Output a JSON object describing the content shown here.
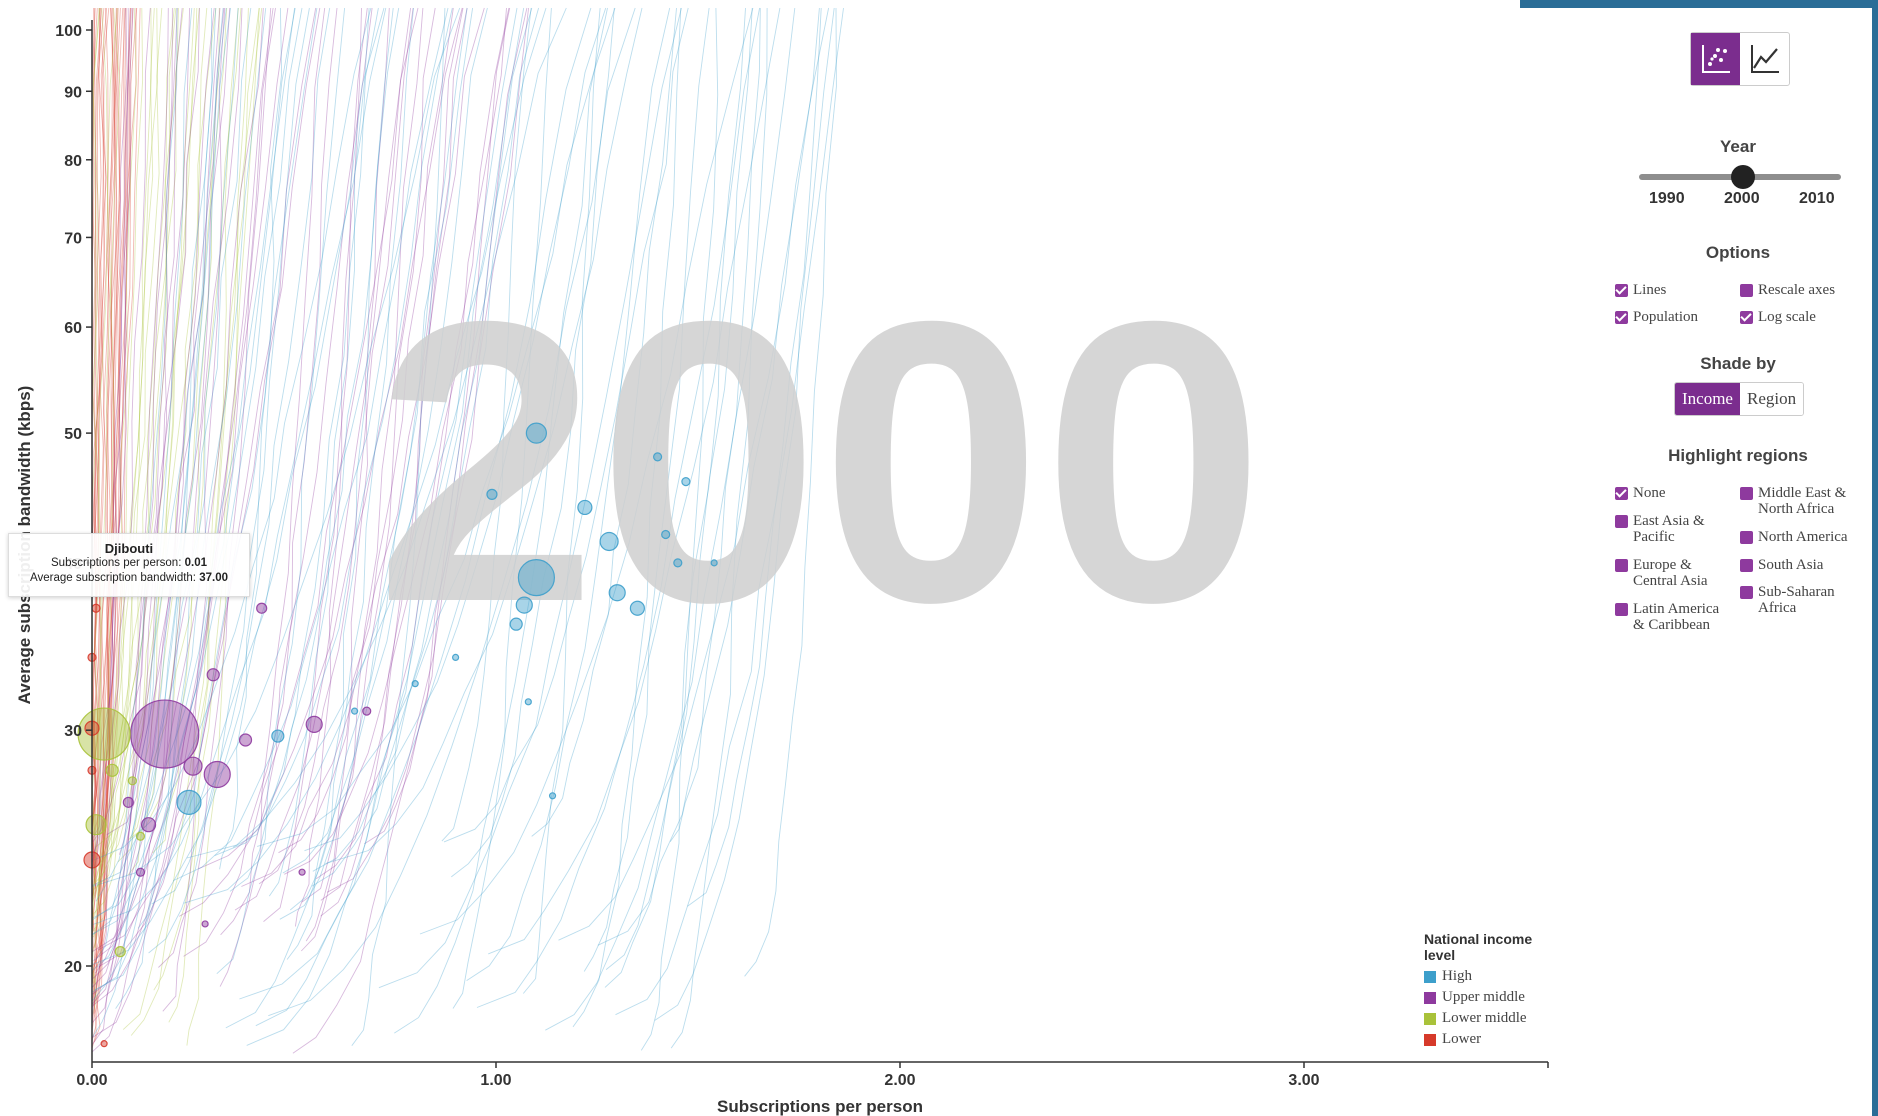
{
  "chart_data": {
    "type": "scatter",
    "year_watermark": "2000",
    "xlabel": "Subscriptions per person",
    "ylabel": "Average subscription bandwidth (kbps)",
    "xlim": [
      0,
      3.6
    ],
    "ylim": [
      17,
      100
    ],
    "y_scale": "log",
    "x_ticks": [
      "0.00",
      "1.00",
      "2.00",
      "3.00"
    ],
    "x_tick_values": [
      0,
      1,
      2,
      3
    ],
    "y_ticks": [
      "20",
      "30",
      "40",
      "50",
      "60",
      "70",
      "80",
      "90",
      "100"
    ],
    "y_tick_values": [
      20,
      30,
      40,
      50,
      60,
      70,
      80,
      90,
      100
    ],
    "grid": false,
    "legend_placement": "bottom-right",
    "income_colors": {
      "High": "#3d9fcb",
      "Upper middle": "#8e3a9e",
      "Lower middle": "#a9c23a",
      "Lower": "#d63a2b"
    },
    "series": [
      {
        "name": "High",
        "color": "#3d9fcb",
        "points": [
          [
            1.1,
            50,
            10
          ],
          [
            1.1,
            39,
            18
          ],
          [
            1.28,
            41.5,
            9
          ],
          [
            1.22,
            44,
            7
          ],
          [
            1.3,
            38,
            8
          ],
          [
            1.35,
            37,
            7
          ],
          [
            1.07,
            37.2,
            8
          ],
          [
            1.05,
            36,
            6
          ],
          [
            0.24,
            26.5,
            12
          ],
          [
            0.46,
            29.7,
            6
          ],
          [
            0.99,
            45,
            5
          ],
          [
            1.4,
            48,
            4
          ],
          [
            1.47,
            46,
            4
          ],
          [
            1.42,
            42,
            4
          ],
          [
            1.45,
            40,
            4
          ],
          [
            1.54,
            40,
            3
          ],
          [
            0.65,
            31,
            3
          ],
          [
            1.08,
            31.5,
            3
          ],
          [
            1.14,
            26.8,
            3
          ],
          [
            0.8,
            32.5,
            3
          ],
          [
            0.9,
            34,
            3
          ]
        ]
      },
      {
        "name": "Upper middle",
        "color": "#8e3a9e",
        "points": [
          [
            0.18,
            29.8,
            34
          ],
          [
            0.31,
            27.8,
            13
          ],
          [
            0.25,
            28.2,
            9
          ],
          [
            0.55,
            30.3,
            8
          ],
          [
            0.3,
            33,
            6
          ],
          [
            0.14,
            25.5,
            7
          ],
          [
            0.09,
            26.5,
            5
          ],
          [
            0.38,
            29.5,
            6
          ],
          [
            0.42,
            37,
            5
          ],
          [
            0.68,
            31,
            4
          ],
          [
            0.12,
            23.5,
            4
          ],
          [
            0.28,
            21.5,
            3
          ],
          [
            0.52,
            23.5,
            3
          ]
        ]
      },
      {
        "name": "Lower middle",
        "color": "#a9c23a",
        "points": [
          [
            0.03,
            29.8,
            26
          ],
          [
            0.01,
            25.5,
            10
          ],
          [
            0.07,
            20.5,
            5
          ],
          [
            0.05,
            28,
            6
          ],
          [
            0.1,
            27.5,
            4
          ],
          [
            0.12,
            25,
            4
          ]
        ]
      },
      {
        "name": "Lower",
        "color": "#d63a2b",
        "points": [
          [
            0.0,
            30.1,
            7
          ],
          [
            0.0,
            24,
            8
          ],
          [
            0.01,
            37,
            4
          ],
          [
            0.0,
            34,
            4
          ],
          [
            0.03,
            17.5,
            3
          ],
          [
            0.0,
            28,
            4
          ]
        ]
      }
    ]
  },
  "tooltip": {
    "country": "Djibouti",
    "subs_label": "Subscriptions per person: ",
    "subs_value": "0.01",
    "bw_label": "Average subscription bandwidth: ",
    "bw_value": "37.00"
  },
  "panel": {
    "view_buttons": [
      {
        "icon": "scatter-plot-icon",
        "active": true
      },
      {
        "icon": "line-chart-icon",
        "active": false
      }
    ],
    "year_title": "Year",
    "year_ticks": [
      "1990",
      "2000",
      "2010"
    ],
    "year_value": "2000",
    "options_title": "Options",
    "options": [
      {
        "label": "Lines",
        "checked": true
      },
      {
        "label": "Rescale axes",
        "checked": false
      },
      {
        "label": "Population",
        "checked": true
      },
      {
        "label": "Log scale",
        "checked": true
      }
    ],
    "shade_title": "Shade by",
    "shade_buttons": [
      {
        "label": "Income",
        "active": true
      },
      {
        "label": "Region",
        "active": false
      }
    ],
    "highlight_title": "Highlight regions",
    "regions": [
      {
        "label": "None",
        "checked": true
      },
      {
        "label": "Middle East &\nNorth Africa",
        "checked": false
      },
      {
        "label": "East Asia &\nPacific",
        "checked": false
      },
      {
        "label": "North America",
        "checked": false
      },
      {
        "label": "Europe &\nCentral Asia",
        "checked": false
      },
      {
        "label": "South Asia",
        "checked": false
      },
      {
        "label": "Latin America\n& Caribbean",
        "checked": false
      },
      {
        "label": "Sub-Saharan\nAfrica",
        "checked": false
      }
    ]
  },
  "legend": {
    "title": "National income level",
    "items": [
      {
        "label": "High",
        "color": "#3d9fcb"
      },
      {
        "label": "Upper middle",
        "color": "#8e3a9e"
      },
      {
        "label": "Lower middle",
        "color": "#a9c23a"
      },
      {
        "label": "Lower",
        "color": "#d63a2b"
      }
    ]
  }
}
